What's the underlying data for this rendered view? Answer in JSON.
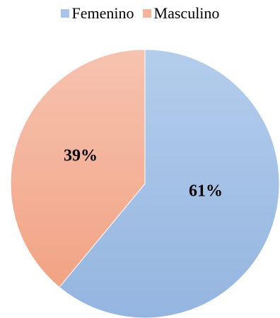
{
  "chart_data": {
    "type": "pie",
    "title": "",
    "legend_position": "top",
    "slices": [
      {
        "name": "Femenino",
        "value": 61,
        "label": "61%",
        "color": "#a9c4e8"
      },
      {
        "name": "Masculino",
        "value": 39,
        "label": "39%",
        "color": "#f5b49b"
      }
    ]
  }
}
